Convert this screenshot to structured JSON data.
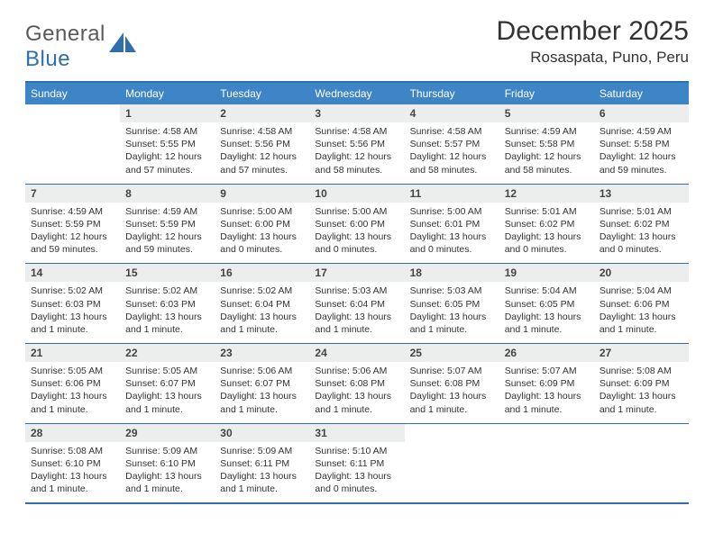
{
  "logo": {
    "text_general": "General",
    "text_blue": "Blue"
  },
  "title": "December 2025",
  "location": "Rosaspata, Puno, Peru",
  "colors": {
    "header_bg": "#3d85c6",
    "header_text": "#ffffff",
    "rule": "#2f6fb0",
    "daynum_bg": "#eceded",
    "body_text": "#333333"
  },
  "days_of_week": [
    "Sunday",
    "Monday",
    "Tuesday",
    "Wednesday",
    "Thursday",
    "Friday",
    "Saturday"
  ],
  "weeks": [
    [
      {
        "n": "",
        "sunrise": "",
        "sunset": "",
        "daylight": ""
      },
      {
        "n": "1",
        "sunrise": "4:58 AM",
        "sunset": "5:55 PM",
        "daylight": "12 hours and 57 minutes."
      },
      {
        "n": "2",
        "sunrise": "4:58 AM",
        "sunset": "5:56 PM",
        "daylight": "12 hours and 57 minutes."
      },
      {
        "n": "3",
        "sunrise": "4:58 AM",
        "sunset": "5:56 PM",
        "daylight": "12 hours and 58 minutes."
      },
      {
        "n": "4",
        "sunrise": "4:58 AM",
        "sunset": "5:57 PM",
        "daylight": "12 hours and 58 minutes."
      },
      {
        "n": "5",
        "sunrise": "4:59 AM",
        "sunset": "5:58 PM",
        "daylight": "12 hours and 58 minutes."
      },
      {
        "n": "6",
        "sunrise": "4:59 AM",
        "sunset": "5:58 PM",
        "daylight": "12 hours and 59 minutes."
      }
    ],
    [
      {
        "n": "7",
        "sunrise": "4:59 AM",
        "sunset": "5:59 PM",
        "daylight": "12 hours and 59 minutes."
      },
      {
        "n": "8",
        "sunrise": "4:59 AM",
        "sunset": "5:59 PM",
        "daylight": "12 hours and 59 minutes."
      },
      {
        "n": "9",
        "sunrise": "5:00 AM",
        "sunset": "6:00 PM",
        "daylight": "13 hours and 0 minutes."
      },
      {
        "n": "10",
        "sunrise": "5:00 AM",
        "sunset": "6:00 PM",
        "daylight": "13 hours and 0 minutes."
      },
      {
        "n": "11",
        "sunrise": "5:00 AM",
        "sunset": "6:01 PM",
        "daylight": "13 hours and 0 minutes."
      },
      {
        "n": "12",
        "sunrise": "5:01 AM",
        "sunset": "6:02 PM",
        "daylight": "13 hours and 0 minutes."
      },
      {
        "n": "13",
        "sunrise": "5:01 AM",
        "sunset": "6:02 PM",
        "daylight": "13 hours and 0 minutes."
      }
    ],
    [
      {
        "n": "14",
        "sunrise": "5:02 AM",
        "sunset": "6:03 PM",
        "daylight": "13 hours and 1 minute."
      },
      {
        "n": "15",
        "sunrise": "5:02 AM",
        "sunset": "6:03 PM",
        "daylight": "13 hours and 1 minute."
      },
      {
        "n": "16",
        "sunrise": "5:02 AM",
        "sunset": "6:04 PM",
        "daylight": "13 hours and 1 minute."
      },
      {
        "n": "17",
        "sunrise": "5:03 AM",
        "sunset": "6:04 PM",
        "daylight": "13 hours and 1 minute."
      },
      {
        "n": "18",
        "sunrise": "5:03 AM",
        "sunset": "6:05 PM",
        "daylight": "13 hours and 1 minute."
      },
      {
        "n": "19",
        "sunrise": "5:04 AM",
        "sunset": "6:05 PM",
        "daylight": "13 hours and 1 minute."
      },
      {
        "n": "20",
        "sunrise": "5:04 AM",
        "sunset": "6:06 PM",
        "daylight": "13 hours and 1 minute."
      }
    ],
    [
      {
        "n": "21",
        "sunrise": "5:05 AM",
        "sunset": "6:06 PM",
        "daylight": "13 hours and 1 minute."
      },
      {
        "n": "22",
        "sunrise": "5:05 AM",
        "sunset": "6:07 PM",
        "daylight": "13 hours and 1 minute."
      },
      {
        "n": "23",
        "sunrise": "5:06 AM",
        "sunset": "6:07 PM",
        "daylight": "13 hours and 1 minute."
      },
      {
        "n": "24",
        "sunrise": "5:06 AM",
        "sunset": "6:08 PM",
        "daylight": "13 hours and 1 minute."
      },
      {
        "n": "25",
        "sunrise": "5:07 AM",
        "sunset": "6:08 PM",
        "daylight": "13 hours and 1 minute."
      },
      {
        "n": "26",
        "sunrise": "5:07 AM",
        "sunset": "6:09 PM",
        "daylight": "13 hours and 1 minute."
      },
      {
        "n": "27",
        "sunrise": "5:08 AM",
        "sunset": "6:09 PM",
        "daylight": "13 hours and 1 minute."
      }
    ],
    [
      {
        "n": "28",
        "sunrise": "5:08 AM",
        "sunset": "6:10 PM",
        "daylight": "13 hours and 1 minute."
      },
      {
        "n": "29",
        "sunrise": "5:09 AM",
        "sunset": "6:10 PM",
        "daylight": "13 hours and 1 minute."
      },
      {
        "n": "30",
        "sunrise": "5:09 AM",
        "sunset": "6:11 PM",
        "daylight": "13 hours and 1 minute."
      },
      {
        "n": "31",
        "sunrise": "5:10 AM",
        "sunset": "6:11 PM",
        "daylight": "13 hours and 0 minutes."
      },
      {
        "n": "",
        "sunrise": "",
        "sunset": "",
        "daylight": ""
      },
      {
        "n": "",
        "sunrise": "",
        "sunset": "",
        "daylight": ""
      },
      {
        "n": "",
        "sunrise": "",
        "sunset": "",
        "daylight": ""
      }
    ]
  ],
  "labels": {
    "sunrise": "Sunrise: ",
    "sunset": "Sunset: ",
    "daylight": "Daylight: "
  }
}
